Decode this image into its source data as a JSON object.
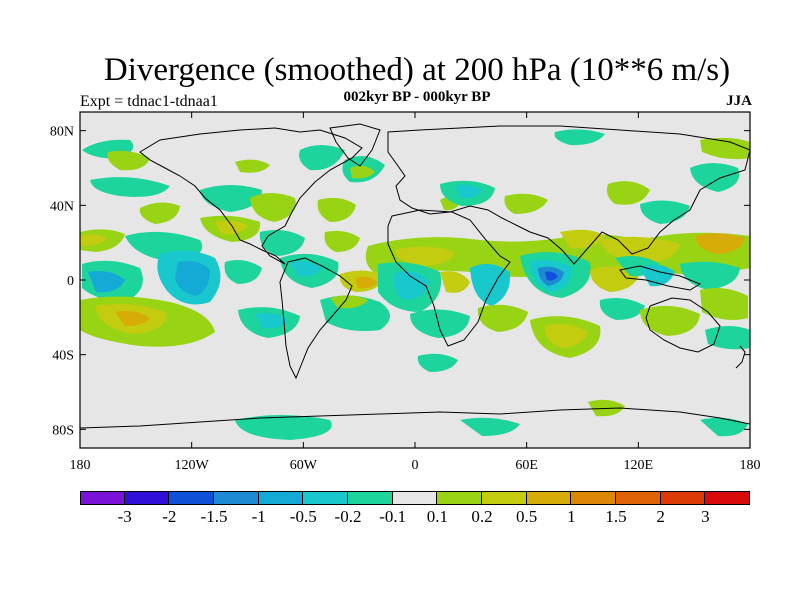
{
  "header": {
    "title": "Divergence (smoothed) at 200 hPa (10**6 m/s)",
    "subtitle": "002kyr BP - 000kyr BP",
    "experiment": "Expt = tdnac1-tdnaa1",
    "season": "JJA"
  },
  "map": {
    "projection": "cylindrical equidistant",
    "lon_range": [
      -180,
      180
    ],
    "lat_range": [
      -90,
      90
    ],
    "lat_ticks": [
      {
        "value": 80,
        "label": "80N"
      },
      {
        "value": 40,
        "label": "40N"
      },
      {
        "value": 0,
        "label": "0"
      },
      {
        "value": -40,
        "label": "40S"
      },
      {
        "value": -80,
        "label": "80S"
      }
    ],
    "lon_ticks": [
      {
        "value": -180,
        "label": "180"
      },
      {
        "value": -120,
        "label": "120W"
      },
      {
        "value": -60,
        "label": "60W"
      },
      {
        "value": 0,
        "label": "0"
      },
      {
        "value": 60,
        "label": "60E"
      },
      {
        "value": 120,
        "label": "120E"
      },
      {
        "value": 180,
        "label": "180"
      }
    ],
    "background_color": "#e6e6e6"
  },
  "colorbar": {
    "colors": [
      "#7a12d8",
      "#3010d8",
      "#1050d8",
      "#1e8ad4",
      "#14aad6",
      "#18c8cc",
      "#1cd49c",
      "#e6e6e6",
      "#98d414",
      "#c4cc10",
      "#d8ac08",
      "#dc8806",
      "#e06206",
      "#de3a08",
      "#d80a0a"
    ],
    "labels": [
      "-3",
      "-2",
      "-1.5",
      "-1",
      "-0.5",
      "-0.2",
      "-0.1",
      "0.1",
      "0.2",
      "0.5",
      "1",
      "1.5",
      "2",
      "3"
    ]
  }
}
